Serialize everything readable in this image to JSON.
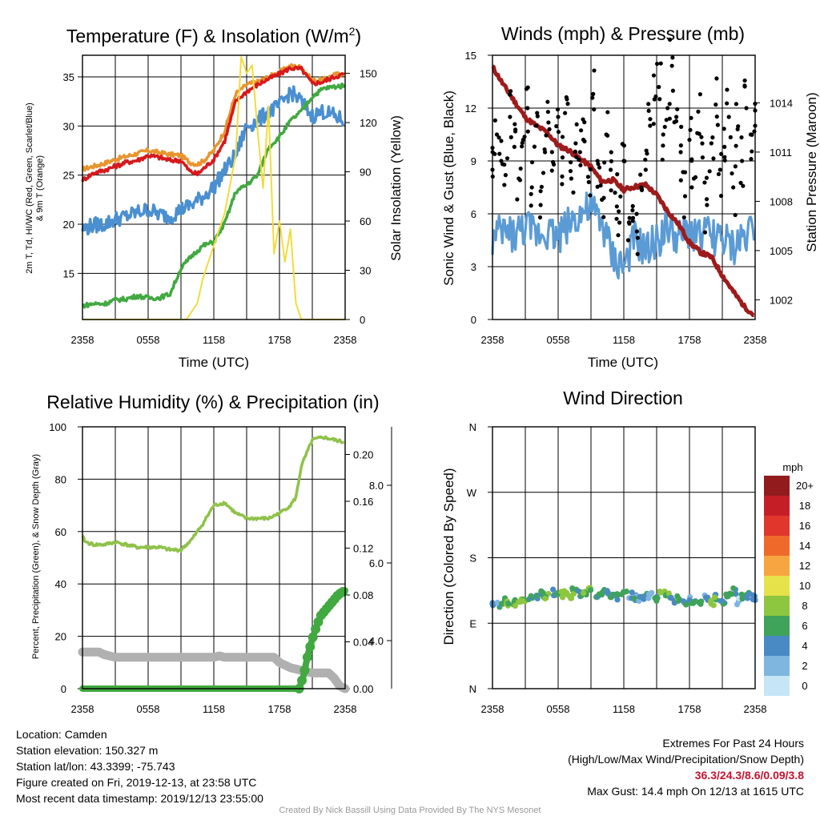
{
  "chart_data": [
    {
      "type": "line",
      "title": "Temperature (F) & Insolation (W/m²)",
      "title_main": "Temperature (F) & Insolation (W/m",
      "title_sup": "2",
      "title_end": ")",
      "xlabel": "Time (UTC)",
      "ylabel_lines": [
        "2m T, Td, HI/WC (Red, Green, Scarlet/Blue)",
        "& 9m T (Orange)"
      ],
      "ylabel_right": "Solar Insolation (Yellow)",
      "x_ticks": [
        "2358",
        "0558",
        "1158",
        "1758",
        "2358"
      ],
      "y_ticks": [
        15,
        20,
        25,
        30,
        35
      ],
      "ylim": [
        10.3,
        37.2
      ],
      "y2_ticks": [
        0,
        30,
        60,
        90,
        120,
        150
      ],
      "y2lim": [
        0,
        161
      ],
      "xlim_hours": [
        0,
        24
      ],
      "series": [
        {
          "color": "#e8952e",
          "x": [
            0,
            1,
            2,
            3,
            4,
            5,
            6,
            7,
            8,
            9,
            9.8,
            10.5,
            11,
            12,
            13,
            14,
            15,
            16,
            17,
            18,
            19,
            20,
            21,
            22,
            23,
            24
          ],
          "values": [
            25.6,
            25.9,
            26.2,
            26.6,
            26.9,
            27.2,
            27.5,
            27.3,
            27.1,
            27.0,
            26.3,
            26.1,
            26.4,
            27.5,
            29.5,
            33.3,
            34.2,
            34.5,
            35.0,
            35.5,
            36.1,
            36.0,
            34.6,
            34.7,
            35.2,
            35.4
          ]
        },
        {
          "color": "#d7191c",
          "x": [
            0,
            1,
            2,
            3,
            4,
            5,
            6,
            7,
            8,
            9,
            9.8,
            10.5,
            11,
            12,
            13,
            14,
            15,
            16,
            17,
            18,
            19,
            20,
            21,
            22,
            23,
            24
          ],
          "values": [
            24.5,
            25.2,
            25.5,
            25.9,
            26.3,
            26.5,
            27.0,
            26.8,
            26.5,
            26.5,
            25.4,
            25.1,
            25.6,
            26.6,
            28.5,
            32.5,
            33.5,
            34.2,
            34.8,
            35.3,
            35.9,
            35.8,
            34.3,
            34.5,
            35.0,
            35.3
          ]
        },
        {
          "color": "#4a8fd0",
          "x": [
            0,
            1,
            2,
            3,
            4,
            5,
            6,
            7,
            8,
            9,
            10,
            11,
            12,
            13,
            14,
            15,
            16,
            17,
            18,
            19,
            20,
            21,
            22,
            23,
            24
          ],
          "values": [
            19.5,
            19.9,
            20.0,
            20.5,
            20.8,
            21.2,
            21.5,
            21.0,
            20.8,
            21.5,
            22.0,
            22.8,
            23.8,
            25.5,
            27.0,
            30.0,
            30.5,
            31.5,
            32.0,
            33.5,
            32.5,
            31.0,
            31.5,
            31.0,
            30.5
          ]
        },
        {
          "color": "#41a940",
          "x": [
            0,
            1,
            2,
            3,
            4,
            5,
            6,
            7,
            8,
            9,
            10,
            11,
            12,
            13,
            14,
            15,
            16,
            17,
            18,
            19,
            20,
            21,
            22,
            23,
            24
          ],
          "values": [
            11.7,
            11.9,
            11.9,
            12.3,
            12.4,
            12.7,
            12.5,
            12.5,
            12.9,
            15.5,
            16.8,
            17.8,
            18.2,
            20.1,
            23.3,
            24.0,
            25.0,
            27.8,
            28.9,
            30.5,
            31.5,
            33.0,
            33.8,
            34.0,
            34.1
          ]
        },
        {
          "color": "#f2dc3c",
          "axis": "right",
          "x": [
            0,
            9.5,
            10.5,
            11,
            12,
            13,
            14,
            14.5,
            15,
            15.5,
            16,
            16.5,
            17,
            17.5,
            18,
            18.5,
            19,
            19.5,
            20,
            20.5,
            21,
            21.5,
            22,
            23,
            24
          ],
          "values": [
            0,
            0,
            10,
            25,
            45,
            65,
            100,
            160,
            150,
            155,
            115,
            80,
            130,
            40,
            60,
            35,
            55,
            10,
            0,
            0,
            0,
            0,
            0,
            0,
            0
          ]
        }
      ]
    },
    {
      "type": "scatter",
      "title": "Winds (mph) & Pressure (mb)",
      "xlabel": "Time (UTC)",
      "ylabel": "Sonic Wind & Gust (Blue, Black)",
      "ylabel_right": "Station Pressure (Maroon)",
      "x_ticks": [
        "2358",
        "0558",
        "1158",
        "1758",
        "2358"
      ],
      "y_ticks": [
        0,
        3,
        6,
        9,
        12,
        15
      ],
      "ylim": [
        0,
        15
      ],
      "y2_ticks": [
        "1002",
        "1005",
        "1008",
        "1011",
        "1014"
      ],
      "y2lim": [
        1000.8,
        1016.9
      ],
      "xlim_hours": [
        0,
        24
      ],
      "series": [
        {
          "name": "Sonic Wind",
          "color": "#5b9bd5",
          "x": [
            0,
            1,
            2,
            3,
            4,
            5,
            6,
            7,
            8,
            9,
            10,
            11,
            12,
            13,
            14,
            15,
            16,
            17,
            18,
            19,
            20,
            21,
            22,
            23,
            24
          ],
          "values": [
            4.5,
            5.0,
            4.8,
            5.2,
            4.9,
            5.1,
            4.7,
            5.5,
            6.0,
            6.2,
            5.5,
            3.5,
            3.0,
            4.5,
            3.8,
            4.5,
            5.2,
            4.5,
            5.0,
            4.8,
            4.8,
            4.5,
            4.0,
            4.8,
            5.5
          ]
        },
        {
          "name": "Pressure",
          "color": "#9e1b1b",
          "axis": "right",
          "x": [
            0,
            1,
            2,
            3,
            4,
            5,
            6,
            7,
            8,
            9,
            10,
            11,
            12,
            13,
            14,
            15,
            16,
            17,
            18,
            19,
            20,
            21,
            22,
            23,
            24
          ],
          "values": [
            1016.2,
            1015.1,
            1014.1,
            1013.1,
            1012.6,
            1012.2,
            1011.4,
            1011.1,
            1010.6,
            1010.1,
            1009.2,
            1009.3,
            1008.7,
            1008.9,
            1009.0,
            1008.4,
            1007.4,
            1006.6,
            1005.5,
            1004.9,
            1004.6,
            1003.5,
            1002.5,
            1001.6,
            1001.0
          ]
        },
        {
          "name": "Gust",
          "color": "#000000",
          "x": [
            0,
            0.4,
            0.8,
            1.2,
            1.6,
            2.0,
            2.4,
            2.8,
            3.2,
            3.6,
            4.0,
            4.4,
            4.8,
            5.2,
            5.6,
            6.0,
            6.4,
            6.8,
            7.2,
            7.6,
            8.0,
            8.4,
            8.8,
            9.2,
            9.6,
            10.0,
            10.4,
            10.8,
            11.2,
            11.6,
            12.0,
            12.4,
            12.8,
            13.2,
            13.6,
            14.0,
            14.4,
            14.8,
            15.2,
            15.6,
            16.0,
            16.4,
            16.8,
            17.2,
            17.6,
            18.0,
            18.4,
            18.8,
            19.2,
            19.6,
            20.0,
            20.4,
            20.8,
            21.2,
            21.6,
            22.0,
            22.4,
            22.8,
            23.2,
            23.6,
            24.0
          ],
          "values": [
            8.5,
            10.5,
            9.0,
            8.2,
            11.5,
            9.8,
            8.0,
            10.2,
            12.0,
            7.5,
            11.0,
            6.5,
            9.5,
            10.8,
            8.8,
            11.5,
            9.2,
            12.5,
            8.0,
            10.0,
            9.5,
            11.2,
            7.8,
            12.8,
            9.0,
            6.8,
            10.5,
            8.5,
            7.2,
            5.5,
            9.0,
            4.5,
            6.2,
            5.0,
            7.5,
            8.5,
            11.0,
            12.5,
            13.2,
            10.5,
            12.0,
            14.4,
            11.5,
            9.5,
            7.0,
            10.2,
            8.0,
            11.8,
            9.2,
            6.5,
            10.0,
            12.2,
            8.5,
            9.8,
            11.5,
            7.5,
            10.8,
            9.0,
            12.0,
            10.5,
            11.0
          ]
        }
      ]
    },
    {
      "type": "line",
      "title": "Relative Humidity (%) & Precipitation (in)",
      "ylabel": "Percent, Precipitation (Green), & Snow Depth (Gray)",
      "x_ticks": [
        "2358",
        "0558",
        "1158",
        "1758",
        "2358"
      ],
      "y_ticks": [
        0,
        20,
        40,
        60,
        80,
        100
      ],
      "ylim": [
        0,
        100
      ],
      "y2_ticks": [
        "0.00",
        "0.04",
        "0.08",
        "0.12",
        "0.16",
        "0.20"
      ],
      "y2lim": [
        0,
        0.2236
      ],
      "y3_ticks": [
        "4.0",
        "6.0",
        "8.0"
      ],
      "xlim_hours": [
        0,
        24
      ],
      "series": [
        {
          "name": "Relative Humidity",
          "color": "#8fc24a",
          "x": [
            0,
            0.3,
            1,
            2,
            3,
            4,
            5,
            6,
            7,
            8,
            9,
            9.5,
            10,
            10.5,
            11,
            12,
            13,
            14,
            15,
            16,
            17,
            18,
            19,
            19.5,
            20,
            21,
            22,
            23,
            24
          ],
          "values": [
            58,
            56,
            55,
            55,
            56,
            55,
            54,
            54,
            54,
            53,
            53,
            55,
            57,
            60,
            63,
            70,
            71,
            67,
            65,
            65,
            65,
            67,
            70,
            73,
            85,
            95,
            96,
            95,
            94
          ]
        },
        {
          "name": "Snow Depth",
          "color": "#b0b0b0",
          "x": [
            0,
            0.5,
            1,
            1.5,
            2,
            3,
            5,
            8,
            11,
            12,
            12.5,
            13,
            14,
            16,
            17.5,
            18,
            19,
            20,
            21,
            22,
            22.5,
            23,
            23.5,
            24
          ],
          "values": [
            14,
            14,
            14,
            14,
            13,
            12,
            12,
            12,
            12,
            12,
            12.5,
            12,
            12,
            12,
            12,
            10,
            8,
            7,
            6,
            6,
            6,
            4,
            1,
            0
          ]
        },
        {
          "name": "Precipitation",
          "color": "#41a940",
          "x": [
            0,
            5,
            10,
            15,
            19.8,
            20.2,
            20.6,
            21,
            21.4,
            21.8,
            22.2,
            22.6,
            23,
            23.4,
            23.8,
            24
          ],
          "values": [
            0,
            0,
            0,
            0,
            0,
            5,
            13,
            19,
            24,
            28,
            30,
            32,
            34,
            36,
            37,
            37.5
          ]
        }
      ]
    },
    {
      "type": "scatter",
      "title": "Wind Direction",
      "ylabel": "Direction (Colored By Speed)",
      "x_ticks": [
        "2358",
        "0558",
        "1158",
        "1758",
        "2358"
      ],
      "y_ticks": [
        "N",
        "E",
        "S",
        "W",
        "N"
      ],
      "ylim_deg": [
        0,
        360
      ],
      "xlim_hours": [
        0,
        24
      ],
      "colorbar_unit": "mph",
      "colorbar": [
        {
          "label": "0",
          "color": "#c6e6f5"
        },
        {
          "label": "2",
          "color": "#7fb6e0"
        },
        {
          "label": "4",
          "color": "#4a8ac4"
        },
        {
          "label": "6",
          "color": "#3fa35a"
        },
        {
          "label": "8",
          "color": "#8dc63f"
        },
        {
          "label": "10",
          "color": "#e6e24a"
        },
        {
          "label": "12",
          "color": "#f7a540"
        },
        {
          "label": "14",
          "color": "#ef6a2a"
        },
        {
          "label": "16",
          "color": "#e0362c"
        },
        {
          "label": "18",
          "color": "#c61e26"
        },
        {
          "label": "20+",
          "color": "#921b1e"
        }
      ],
      "points_x": [
        0,
        0.5,
        1,
        1.5,
        2,
        2.5,
        3,
        3.5,
        4,
        4.5,
        5,
        5.5,
        6,
        6.5,
        7,
        7.5,
        8,
        8.5,
        9,
        9.5,
        10,
        10.5,
        11,
        11.5,
        12,
        12.5,
        13,
        13.5,
        14,
        14.5,
        15,
        15.5,
        16,
        16.5,
        17,
        17.5,
        18,
        18.5,
        19,
        19.5,
        20,
        20.5,
        21,
        21.5,
        22,
        22.5,
        23,
        23.5,
        24
      ],
      "points_deg": [
        117,
        114,
        120,
        116,
        118,
        123,
        121,
        125,
        126,
        130,
        127,
        132,
        133,
        130,
        128,
        134,
        130,
        131,
        136,
        129,
        133,
        131,
        127,
        126,
        130,
        128,
        125,
        122,
        127,
        128,
        124,
        132,
        130,
        121,
        125,
        118,
        122,
        116,
        120,
        124,
        119,
        126,
        121,
        127,
        134,
        120,
        126,
        128,
        125
      ],
      "points_speed_band": [
        2,
        2,
        3,
        4,
        3,
        5,
        4,
        3,
        2,
        3,
        4,
        2,
        3,
        4,
        5,
        3,
        2,
        3,
        4,
        2,
        3,
        2,
        3,
        2,
        3,
        1,
        2,
        2,
        3,
        1,
        2,
        4,
        3,
        2,
        3,
        2,
        2,
        3,
        3,
        2,
        4,
        3,
        2,
        3,
        2,
        1,
        3,
        2,
        2
      ]
    }
  ],
  "footer": {
    "location": "Location: Camden",
    "elevation": "Station elevation: 150.327 m",
    "latlon": "Station lat/lon: 43.3399; -75.743",
    "created": "Figure created on Fri, 2019-12-13, at 23:58 UTC",
    "recent": "Most recent data timestamp: 2019/12/13 23:55:00",
    "extremes_title": "Extremes For Past 24 Hours",
    "extremes_sub": "(High/Low/Max Wind/Precipitation/Snow Depth)",
    "extremes_values": "36.3/24.3/8.6/0.09/3.8",
    "max_gust": "Max Gust: 14.4 mph On 12/13 at 1615 UTC",
    "credit": "Created By Nick Bassill Using Data Provided By The NYS Mesonet"
  }
}
